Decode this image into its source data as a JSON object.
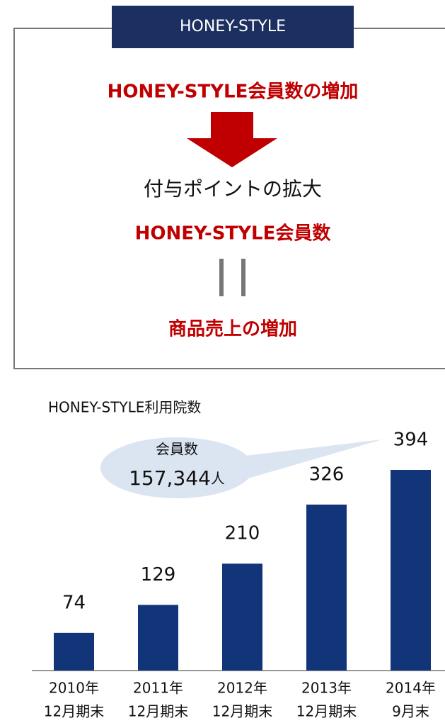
{
  "panel": {
    "label": "HONEY-STYLE",
    "line1": "HONEY-STYLE会員数の増加",
    "line2": "付与ポイントの拡大",
    "line3": "HONEY-STYLE会員数",
    "line4": "商品売上の増加"
  },
  "chart_data": {
    "type": "bar",
    "title": "HONEY-STYLE利用院数",
    "categories": [
      [
        "2010年",
        "12月期末"
      ],
      [
        "2011年",
        "12月期末"
      ],
      [
        "2012年",
        "12月期末"
      ],
      [
        "2013年",
        "12月期末"
      ],
      [
        "2014年",
        "9月末"
      ]
    ],
    "values": [
      74,
      129,
      210,
      326,
      394
    ],
    "color": "#12357a",
    "annotation": {
      "label": "会員数",
      "count": "157,344",
      "unit": "人"
    }
  }
}
